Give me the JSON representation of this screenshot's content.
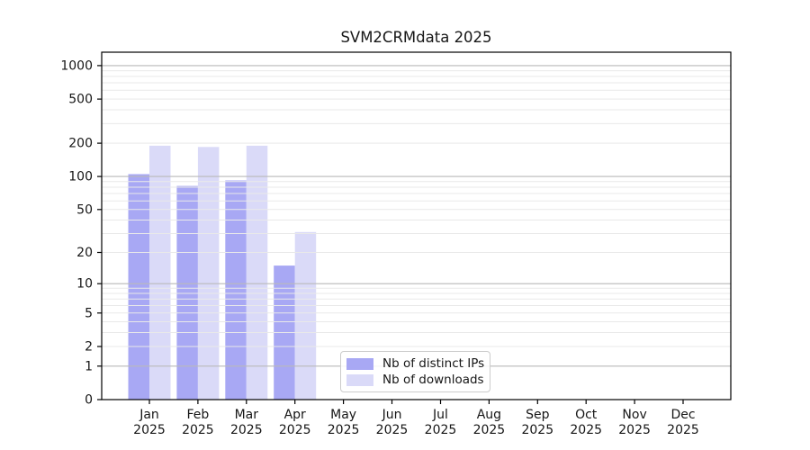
{
  "chart_data": {
    "type": "bar",
    "title": "SVM2CRMdata 2025",
    "year_label": "2025",
    "categories": [
      "Jan",
      "Feb",
      "Mar",
      "Apr",
      "May",
      "Jun",
      "Jul",
      "Aug",
      "Sep",
      "Oct",
      "Nov",
      "Dec"
    ],
    "series": [
      {
        "name": "Nb of distinct IPs",
        "color": "#a8a8f4",
        "values": [
          105,
          82,
          92,
          15,
          null,
          null,
          null,
          null,
          null,
          null,
          null,
          null
        ]
      },
      {
        "name": "Nb of downloads",
        "color": "#dadaf8",
        "values": [
          190,
          185,
          190,
          31,
          null,
          null,
          null,
          null,
          null,
          null,
          null,
          null
        ]
      }
    ],
    "yscale": "log1p",
    "ylim": [
      0,
      1320
    ],
    "yticks": [
      0,
      1,
      2,
      5,
      10,
      20,
      50,
      100,
      200,
      500,
      1000
    ],
    "grid": true,
    "legend_position": "lower center-left inside plot",
    "axis_color": "#000000",
    "major_grid_color": "#b9b9b9",
    "minor_grid_color": "#e9e9e9",
    "text_color": "#161616"
  }
}
